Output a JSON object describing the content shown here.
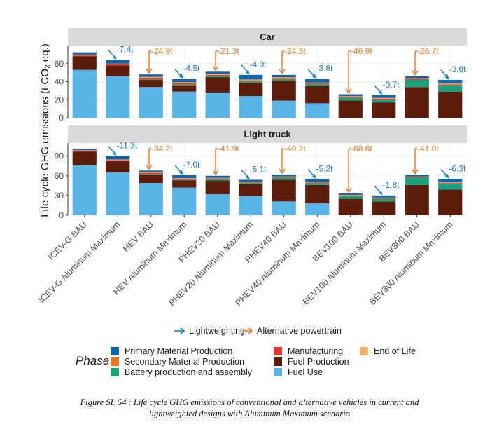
{
  "chart_data": {
    "type": "bar",
    "stacked": true,
    "ylabel": "Life cycle GHG emissions (t CO₂ eq.)",
    "categories": [
      "ICEV-G BAU",
      "ICEV-G Aluminum Maximum",
      "HEV BAU",
      "HEV Aluminum Maximum",
      "PHEV20 BAU",
      "PHEV20 Aluminum Maximum",
      "PHEV40 BAU",
      "PHEV40 Aluminum Maximum",
      "BEV100 BAU",
      "BEV100 Aluminum Maximum",
      "BEV300 BAU",
      "BEV300 Aluminum Maximum"
    ],
    "phase_order": [
      "Fuel Use",
      "Fuel Production",
      "Battery production and assembly",
      "Manufacturing",
      "End of Life",
      "Secondary Material Production",
      "Primary Material Production"
    ],
    "colors": {
      "Primary Material Production": "#0b66b0",
      "Secondary Material Production": "#e8761c",
      "Battery production and assembly": "#18a37a",
      "Manufacturing": "#e8342a",
      "Fuel Production": "#5c1d0c",
      "End of Life": "#f2b06a",
      "Fuel Use": "#5ab4e8"
    },
    "arrow_colors": {
      "Lightweighting": "#1a78b4",
      "Alternative powertrain": "#e57a22"
    },
    "panels": [
      {
        "title": "Car",
        "ylim": [
          0,
          80
        ],
        "yticks": [
          0,
          20,
          40,
          60
        ],
        "stacks": [
          {
            "Fuel Use": 53,
            "Fuel Production": 15,
            "Battery production and assembly": 0,
            "Manufacturing": 1,
            "End of Life": 0.5,
            "Secondary Material Production": 0.5,
            "Primary Material Production": 2.5
          },
          {
            "Fuel Use": 46,
            "Fuel Production": 12,
            "Battery production and assembly": 0,
            "Manufacturing": 1,
            "End of Life": 0.5,
            "Secondary Material Production": 0.5,
            "Primary Material Production": 4
          },
          {
            "Fuel Use": 34,
            "Fuel Production": 8,
            "Battery production and assembly": 1,
            "Manufacturing": 1.5,
            "End of Life": 0.5,
            "Secondary Material Production": 0.5,
            "Primary Material Production": 2.5
          },
          {
            "Fuel Use": 29,
            "Fuel Production": 7,
            "Battery production and assembly": 1,
            "Manufacturing": 1.5,
            "End of Life": 0.5,
            "Secondary Material Production": 0.5,
            "Primary Material Production": 3.5
          },
          {
            "Fuel Use": 28,
            "Fuel Production": 17,
            "Battery production and assembly": 1.5,
            "Manufacturing": 1,
            "End of Life": 0.5,
            "Secondary Material Production": 0.5,
            "Primary Material Production": 2.5
          },
          {
            "Fuel Use": 24,
            "Fuel Production": 15,
            "Battery production and assembly": 1.5,
            "Manufacturing": 1,
            "End of Life": 0.5,
            "Secondary Material Production": 0.5,
            "Primary Material Production": 5
          },
          {
            "Fuel Use": 19,
            "Fuel Production": 22,
            "Battery production and assembly": 2,
            "Manufacturing": 1,
            "End of Life": 0.5,
            "Secondary Material Production": 0.5,
            "Primary Material Production": 2.5
          },
          {
            "Fuel Use": 16,
            "Fuel Production": 19,
            "Battery production and assembly": 2,
            "Manufacturing": 1,
            "End of Life": 0.5,
            "Secondary Material Production": 0.5,
            "Primary Material Production": 4
          },
          {
            "Fuel Use": 0,
            "Fuel Production": 19,
            "Battery production and assembly": 3,
            "Manufacturing": 1,
            "End of Life": 0.5,
            "Secondary Material Production": 0.5,
            "Primary Material Production": 2
          },
          {
            "Fuel Use": 0,
            "Fuel Production": 17,
            "Battery production and assembly": 3,
            "Manufacturing": 1,
            "End of Life": 0.5,
            "Secondary Material Production": 0.5,
            "Primary Material Production": 3
          },
          {
            "Fuel Use": 0,
            "Fuel Production": 34,
            "Battery production and assembly": 8,
            "Manufacturing": 1,
            "End of Life": 0.5,
            "Secondary Material Production": 0.5,
            "Primary Material Production": 2
          },
          {
            "Fuel Use": 0,
            "Fuel Production": 29,
            "Battery production and assembly": 7,
            "Manufacturing": 1,
            "End of Life": 0.5,
            "Secondary Material Production": 0.5,
            "Primary Material Production": 4
          }
        ],
        "arrows": [
          {
            "from": 0,
            "to": 1,
            "kind": "Lightweighting",
            "label": "-7.4t"
          },
          {
            "from": 0,
            "to": 2,
            "kind": "Alternative powertrain",
            "label": "-24.9t"
          },
          {
            "from": 2,
            "to": 3,
            "kind": "Lightweighting",
            "label": "-4.5t"
          },
          {
            "from": 0,
            "to": 4,
            "kind": "Alternative powertrain",
            "label": "-21.3t"
          },
          {
            "from": 4,
            "to": 5,
            "kind": "Lightweighting",
            "label": "-4.0t"
          },
          {
            "from": 0,
            "to": 6,
            "kind": "Alternative powertrain",
            "label": "-24.3t"
          },
          {
            "from": 6,
            "to": 7,
            "kind": "Lightweighting",
            "label": "-3.8t"
          },
          {
            "from": 0,
            "to": 8,
            "kind": "Alternative powertrain",
            "label": "-46.9t"
          },
          {
            "from": 8,
            "to": 9,
            "kind": "Lightweighting",
            "label": "-0.7t"
          },
          {
            "from": 0,
            "to": 10,
            "kind": "Alternative powertrain",
            "label": "-26.7t"
          },
          {
            "from": 10,
            "to": 11,
            "kind": "Lightweighting",
            "label": "-3.8t"
          }
        ]
      },
      {
        "title": "Light truck",
        "ylim": [
          0,
          110
        ],
        "yticks": [
          0,
          30,
          60,
          90
        ],
        "stacks": [
          {
            "Fuel Use": 76,
            "Fuel Production": 21,
            "Battery production and assembly": 0,
            "Manufacturing": 1,
            "End of Life": 0.5,
            "Secondary Material Production": 0.5,
            "Primary Material Production": 2.5
          },
          {
            "Fuel Use": 65,
            "Fuel Production": 18,
            "Battery production and assembly": 0,
            "Manufacturing": 1,
            "End of Life": 0.5,
            "Secondary Material Production": 0.5,
            "Primary Material Production": 5
          },
          {
            "Fuel Use": 49,
            "Fuel Production": 13,
            "Battery production and assembly": 1,
            "Manufacturing": 1.5,
            "End of Life": 0.5,
            "Secondary Material Production": 0.5,
            "Primary Material Production": 2.5
          },
          {
            "Fuel Use": 42,
            "Fuel Production": 11,
            "Battery production and assembly": 1,
            "Manufacturing": 1.5,
            "End of Life": 0.5,
            "Secondary Material Production": 0.5,
            "Primary Material Production": 4.5
          },
          {
            "Fuel Use": 32,
            "Fuel Production": 21,
            "Battery production and assembly": 2,
            "Manufacturing": 1,
            "End of Life": 0.5,
            "Secondary Material Production": 0.5,
            "Primary Material Production": 3
          },
          {
            "Fuel Use": 29,
            "Fuel Production": 18,
            "Battery production and assembly": 2,
            "Manufacturing": 1,
            "End of Life": 0.5,
            "Secondary Material Production": 0.5,
            "Primary Material Production": 3
          },
          {
            "Fuel Use": 21,
            "Fuel Production": 33,
            "Battery production and assembly": 3,
            "Manufacturing": 1,
            "End of Life": 0.5,
            "Secondary Material Production": 0.5,
            "Primary Material Production": 3
          },
          {
            "Fuel Use": 18,
            "Fuel Production": 28,
            "Battery production and assembly": 3,
            "Manufacturing": 1,
            "End of Life": 0.5,
            "Secondary Material Production": 0.5,
            "Primary Material Production": 4
          },
          {
            "Fuel Use": 0,
            "Fuel Production": 25,
            "Battery production and assembly": 4,
            "Manufacturing": 1,
            "End of Life": 0.5,
            "Secondary Material Production": 0.5,
            "Primary Material Production": 2
          },
          {
            "Fuel Use": 0,
            "Fuel Production": 21,
            "Battery production and assembly": 4,
            "Manufacturing": 1,
            "End of Life": 0.5,
            "Secondary Material Production": 0.5,
            "Primary Material Production": 3
          },
          {
            "Fuel Use": 0,
            "Fuel Production": 46,
            "Battery production and assembly": 11,
            "Manufacturing": 1,
            "End of Life": 0.5,
            "Secondary Material Production": 0.5,
            "Primary Material Production": 2
          },
          {
            "Fuel Use": 0,
            "Fuel Production": 39,
            "Battery production and assembly": 9,
            "Manufacturing": 1,
            "End of Life": 0.5,
            "Secondary Material Production": 0.5,
            "Primary Material Production": 5
          }
        ],
        "arrows": [
          {
            "from": 0,
            "to": 1,
            "kind": "Lightweighting",
            "label": "-11.3t"
          },
          {
            "from": 0,
            "to": 2,
            "kind": "Alternative powertrain",
            "label": "-34.2t"
          },
          {
            "from": 2,
            "to": 3,
            "kind": "Lightweighting",
            "label": "-7.0t"
          },
          {
            "from": 0,
            "to": 4,
            "kind": "Alternative powertrain",
            "label": "-41.9t"
          },
          {
            "from": 4,
            "to": 5,
            "kind": "Lightweighting",
            "label": "-5.1t"
          },
          {
            "from": 0,
            "to": 6,
            "kind": "Alternative powertrain",
            "label": "-40.2t"
          },
          {
            "from": 6,
            "to": 7,
            "kind": "Lightweighting",
            "label": "-5.2t"
          },
          {
            "from": 0,
            "to": 8,
            "kind": "Alternative powertrain",
            "label": "-68.6t"
          },
          {
            "from": 8,
            "to": 9,
            "kind": "Lightweighting",
            "label": "-1.8t"
          },
          {
            "from": 0,
            "to": 10,
            "kind": "Alternative powertrain",
            "label": "-41.0t"
          },
          {
            "from": 10,
            "to": 11,
            "kind": "Lightweighting",
            "label": "-6.3t"
          }
        ]
      }
    ],
    "arrow_legend": [
      "Lightweighting",
      "Alternative powertrain"
    ],
    "legend": {
      "title": "Phase",
      "placement": "bottom",
      "entries": [
        "Primary Material Production",
        "Secondary Material Production",
        "Battery production and assembly",
        "Manufacturing",
        "Fuel Production",
        "Fuel Use",
        "End of Life"
      ]
    }
  },
  "caption": {
    "line1": "Figure SI. 54 : Life cycle GHG emissions of conventional and alternative vehicles in current and",
    "line2": "lightweighted designs with Aluminum Maximum scenario"
  }
}
